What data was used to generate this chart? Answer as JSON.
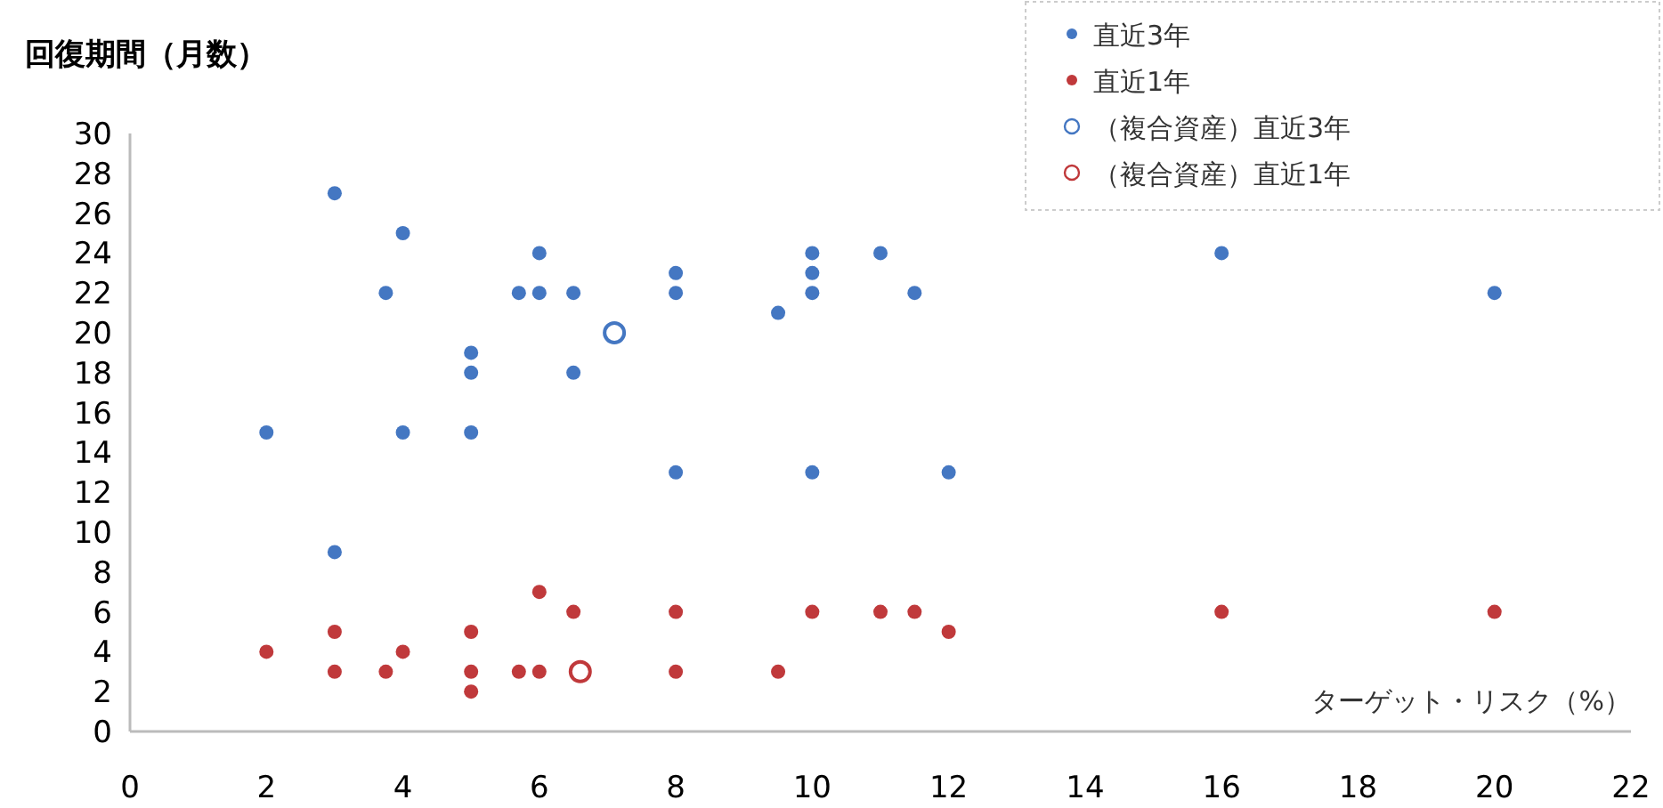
{
  "chart_data": {
    "type": "scatter",
    "title": "回復期間（月数）",
    "xlabel": "ターゲット・リスク（%）",
    "xlim": [
      0,
      22
    ],
    "xticks": [
      0,
      2,
      4,
      6,
      8,
      10,
      12,
      14,
      16,
      18,
      20,
      22
    ],
    "ylim": [
      0,
      30
    ],
    "yticks": [
      0,
      2,
      4,
      6,
      8,
      10,
      12,
      14,
      16,
      18,
      20,
      22,
      24,
      26,
      28,
      30
    ],
    "grid": false,
    "legend": "top right",
    "marker": "circle",
    "series": [
      {
        "name": "直近3年",
        "color": "#4477c2",
        "x": [
          2,
          3,
          3,
          3.75,
          4,
          4,
          5,
          5,
          5,
          5.7,
          6,
          6,
          6.5,
          6.5,
          8,
          8,
          8,
          9.5,
          10,
          10,
          10,
          10,
          11,
          11.5,
          12,
          16,
          20
        ],
        "values": [
          15,
          27,
          9,
          22,
          25,
          15,
          19,
          18,
          15,
          22,
          24,
          22,
          22,
          18,
          23,
          22,
          13,
          21,
          24,
          23,
          22,
          13,
          24,
          22,
          13,
          24,
          22
        ]
      },
      {
        "name": "直近1年",
        "color": "#c0393b",
        "x": [
          2,
          3,
          3,
          3.75,
          4,
          5,
          5,
          5,
          5.7,
          6,
          6,
          6.5,
          8,
          8,
          9.5,
          10,
          11,
          11.5,
          12,
          16,
          20
        ],
        "values": [
          4,
          5,
          3,
          3,
          4,
          5,
          3,
          2,
          3,
          7,
          3,
          6,
          6,
          3,
          3,
          6,
          6,
          6,
          5,
          6,
          6
        ]
      },
      {
        "name": "（複合資産）直近3年",
        "color": "#4477c2",
        "x": [
          7.1
        ],
        "values": [
          20
        ]
      },
      {
        "name": "（複合資産）直近1年",
        "color": "#c0393b",
        "x": [
          6.6
        ],
        "values": [
          3
        ]
      }
    ]
  }
}
